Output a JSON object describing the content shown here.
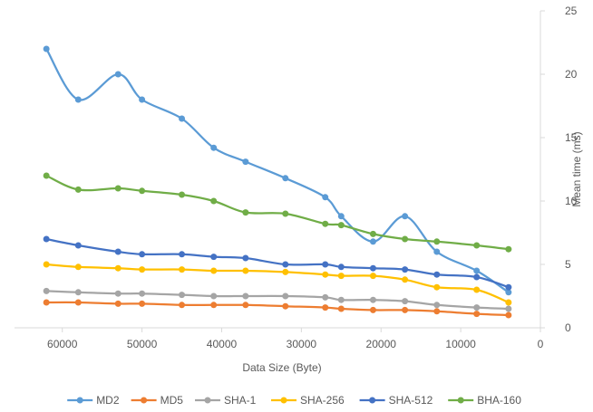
{
  "chart_data": {
    "type": "line",
    "title": "",
    "xlabel": "Data Size (Byte)",
    "ylabel": "Mean time (ms)",
    "xlim": [
      0,
      66000
    ],
    "x_reversed": true,
    "ylim": [
      0,
      25
    ],
    "y_axis_side": "right",
    "x_ticks": [
      "60000",
      "50000",
      "40000",
      "30000",
      "20000",
      "10000",
      "0"
    ],
    "y_ticks": [
      "0",
      "5",
      "10",
      "15",
      "20",
      "25"
    ],
    "grid": false,
    "legend_position": "bottom",
    "series": [
      {
        "name": "MD2",
        "color": "#5B9BD5",
        "x": [
          62000,
          58000,
          53000,
          50000,
          45000,
          41000,
          37000,
          32000,
          27000,
          25000,
          21000,
          17000,
          13000,
          8000,
          4000
        ],
        "values": [
          22.0,
          18.0,
          20.0,
          18.0,
          16.5,
          14.2,
          13.1,
          11.8,
          10.3,
          8.8,
          6.8,
          8.8,
          6.0,
          4.5,
          2.8
        ]
      },
      {
        "name": "MD5",
        "color": "#ED7D31",
        "x": [
          62000,
          58000,
          53000,
          50000,
          45000,
          41000,
          37000,
          32000,
          27000,
          25000,
          21000,
          17000,
          13000,
          8000,
          4000
        ],
        "values": [
          2.0,
          2.0,
          1.9,
          1.9,
          1.8,
          1.8,
          1.8,
          1.7,
          1.6,
          1.5,
          1.4,
          1.4,
          1.3,
          1.1,
          1.0
        ]
      },
      {
        "name": "SHA-1",
        "color": "#A5A5A5",
        "x": [
          62000,
          58000,
          53000,
          50000,
          45000,
          41000,
          37000,
          32000,
          27000,
          25000,
          21000,
          17000,
          13000,
          8000,
          4000
        ],
        "values": [
          2.9,
          2.8,
          2.7,
          2.7,
          2.6,
          2.5,
          2.5,
          2.5,
          2.4,
          2.2,
          2.2,
          2.1,
          1.8,
          1.6,
          1.5
        ]
      },
      {
        "name": "SHA-256",
        "color": "#FFC000",
        "x": [
          62000,
          58000,
          53000,
          50000,
          45000,
          41000,
          37000,
          32000,
          27000,
          25000,
          21000,
          17000,
          13000,
          8000,
          4000
        ],
        "values": [
          5.0,
          4.8,
          4.7,
          4.6,
          4.6,
          4.5,
          4.5,
          4.4,
          4.2,
          4.1,
          4.1,
          3.8,
          3.2,
          3.0,
          2.0
        ]
      },
      {
        "name": "SHA-512",
        "color": "#4472C4",
        "x": [
          62000,
          58000,
          53000,
          50000,
          45000,
          41000,
          37000,
          32000,
          27000,
          25000,
          21000,
          17000,
          13000,
          8000,
          4000
        ],
        "values": [
          7.0,
          6.5,
          6.0,
          5.8,
          5.8,
          5.6,
          5.5,
          5.0,
          5.0,
          4.8,
          4.7,
          4.6,
          4.2,
          4.0,
          3.2
        ]
      },
      {
        "name": "BHA-160",
        "color": "#70AD47",
        "x": [
          62000,
          58000,
          53000,
          50000,
          45000,
          41000,
          37000,
          32000,
          27000,
          25000,
          21000,
          17000,
          13000,
          8000,
          4000
        ],
        "values": [
          12.0,
          10.9,
          11.0,
          10.8,
          10.5,
          10.0,
          9.1,
          9.0,
          8.2,
          8.1,
          7.4,
          7.0,
          6.8,
          6.5,
          6.2
        ]
      }
    ]
  }
}
